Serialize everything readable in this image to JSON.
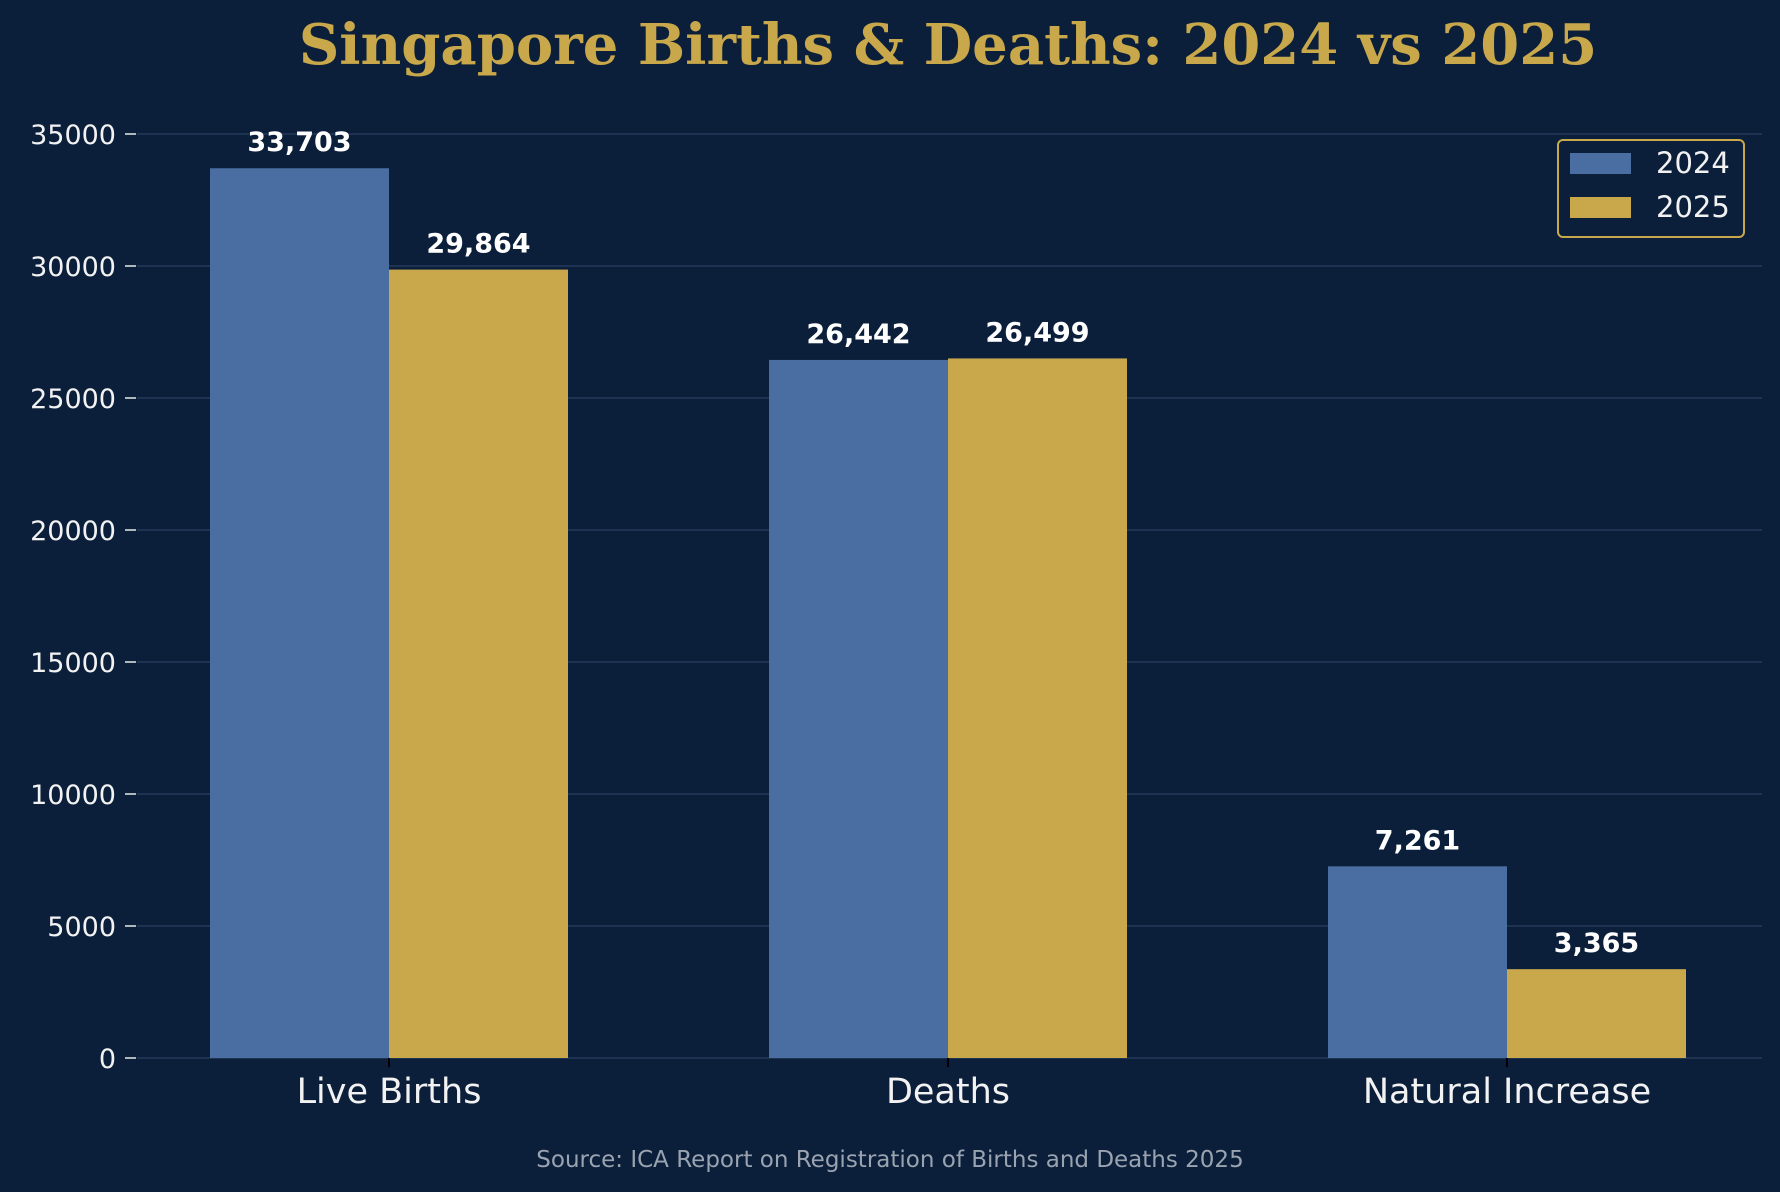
{
  "chart_data": {
    "type": "bar",
    "title": "Singapore Births & Deaths: 2024 vs 2025",
    "xlabel": "",
    "ylabel": "",
    "categories": [
      "Live Births",
      "Deaths",
      "Natural Increase"
    ],
    "series": [
      {
        "name": "2024",
        "values": [
          33703,
          26442,
          7261
        ],
        "labels": [
          "33,703",
          "26,442",
          "7,261"
        ],
        "color": "#4a6da2"
      },
      {
        "name": "2025",
        "values": [
          29864,
          26499,
          3365
        ],
        "labels": [
          "29,864",
          "26,499",
          "3,365"
        ],
        "color": "#c8a84b"
      }
    ],
    "ylim": [
      0,
      35000
    ],
    "yticks": [
      0,
      5000,
      10000,
      15000,
      20000,
      25000,
      30000,
      35000
    ],
    "ytick_labels": [
      "0",
      "5000",
      "10000",
      "15000",
      "20000",
      "25000",
      "30000",
      "35000"
    ],
    "grid": true,
    "legend_position": "top-right",
    "source": "Source: ICA Report on Registration of Births and Deaths 2025"
  },
  "colors": {
    "background": "#0b1f3b",
    "title": "#c8a84b",
    "grid": "#24385a",
    "legend_border": "#c8a84b"
  }
}
